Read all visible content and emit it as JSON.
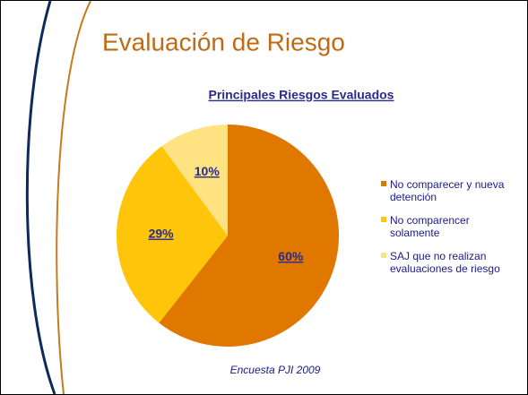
{
  "chart_data": {
    "type": "pie",
    "slide_title": "Evaluación de Riesgo",
    "title": "Principales Riesgos Evaluados",
    "source": "Encuesta PJI 2009",
    "categories": [
      "No comparecer y nueva detención",
      "No comparencer solamente",
      "SAJ que no realizan evaluaciones de riesgo"
    ],
    "values": [
      60,
      29,
      10
    ],
    "value_labels": [
      "60%",
      "29%",
      "10%"
    ],
    "colors": [
      "#e07800",
      "#ffc50a",
      "#ffe282"
    ],
    "legend": "right"
  }
}
